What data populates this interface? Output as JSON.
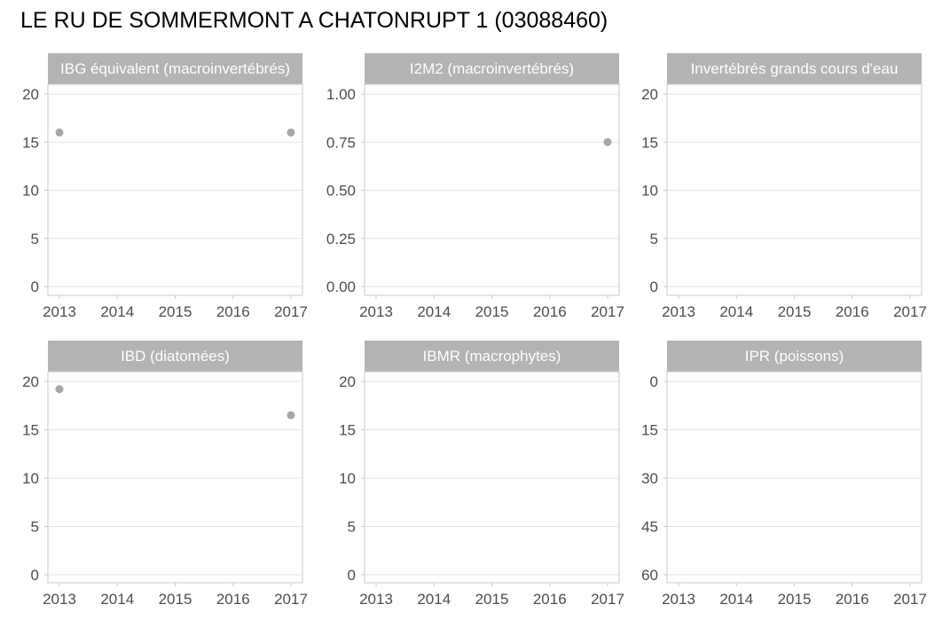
{
  "chart_data": {
    "title": "LE RU DE SOMMERMONT A CHATONRUPT 1 (03088460)",
    "type": "scatter",
    "x_ticks": [
      "2013",
      "2014",
      "2015",
      "2016",
      "2017"
    ],
    "colors": {
      "point": "#a6a6a6",
      "strip": "#b3b3b3",
      "strip_text": "#ffffff",
      "grid": "#e3e3e3",
      "border": "#c8c8c8",
      "tick_text": "#4d4d4d",
      "title_text": "#000000"
    },
    "panels": [
      {
        "strip": "IBG équivalent (macroinvertébrés)",
        "ylim": [
          0,
          20
        ],
        "y_ticks": [
          "0",
          "5",
          "10",
          "15",
          "20"
        ],
        "y_reversed": false,
        "points": [
          {
            "x": 2013,
            "y": 16
          },
          {
            "x": 2017,
            "y": 16
          }
        ]
      },
      {
        "strip": "I2M2 (macroinvertébrés)",
        "ylim": [
          0,
          1
        ],
        "y_ticks": [
          "0.00",
          "0.25",
          "0.50",
          "0.75",
          "1.00"
        ],
        "y_reversed": false,
        "points": [
          {
            "x": 2017,
            "y": 0.75
          }
        ]
      },
      {
        "strip": "Invertébrés grands cours d'eau",
        "ylim": [
          0,
          20
        ],
        "y_ticks": [
          "0",
          "5",
          "10",
          "15",
          "20"
        ],
        "y_reversed": false,
        "points": []
      },
      {
        "strip": "IBD (diatomées)",
        "ylim": [
          0,
          20
        ],
        "y_ticks": [
          "0",
          "5",
          "10",
          "15",
          "20"
        ],
        "y_reversed": false,
        "points": [
          {
            "x": 2013,
            "y": 19.2
          },
          {
            "x": 2017,
            "y": 16.5
          }
        ]
      },
      {
        "strip": "IBMR (macrophytes)",
        "ylim": [
          0,
          20
        ],
        "y_ticks": [
          "0",
          "5",
          "10",
          "15",
          "20"
        ],
        "y_reversed": false,
        "points": []
      },
      {
        "strip": "IPR (poissons)",
        "ylim": [
          0,
          60
        ],
        "y_ticks": [
          "0",
          "15",
          "30",
          "45",
          "60"
        ],
        "y_reversed": true,
        "points": []
      }
    ]
  }
}
